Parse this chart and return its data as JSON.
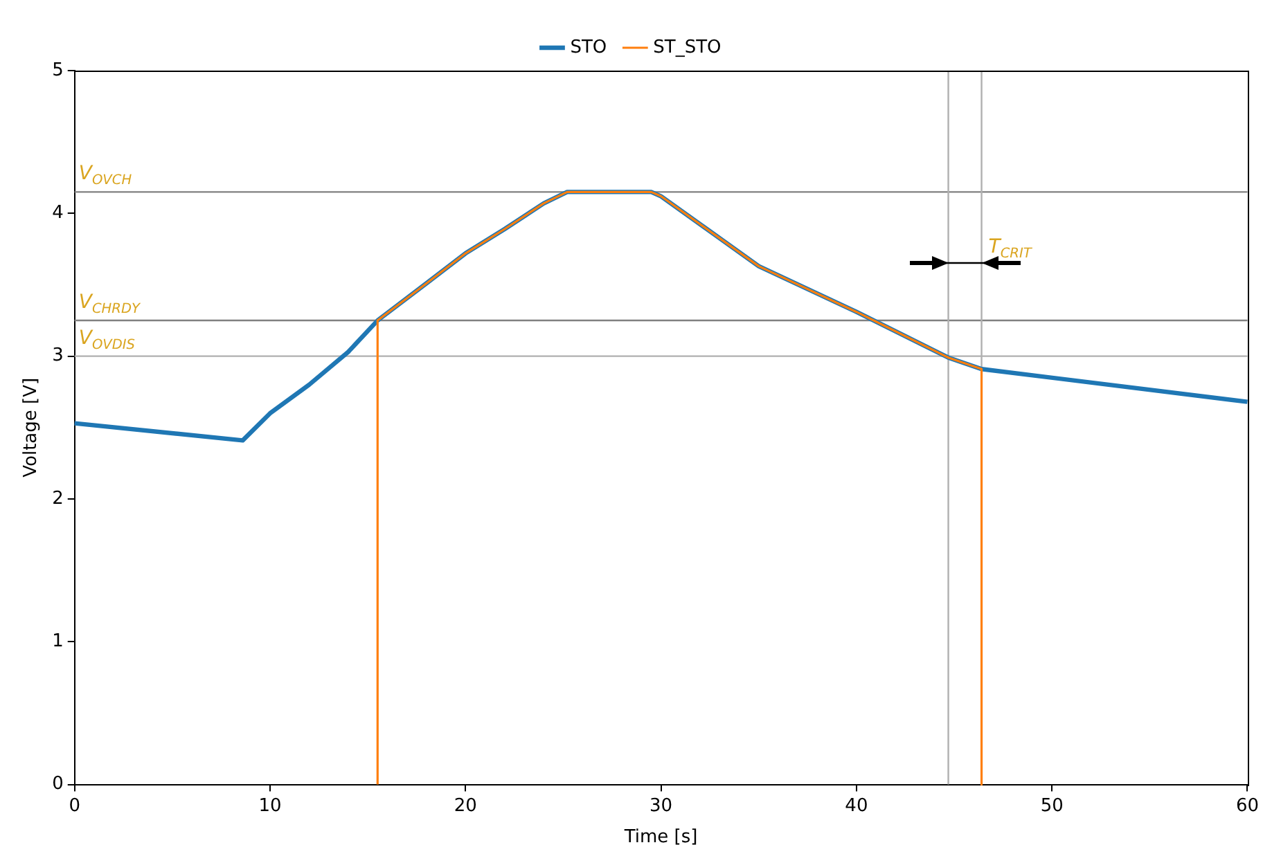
{
  "chart_data": {
    "type": "line",
    "xlabel": "Time [s]",
    "ylabel": "Voltage [V]",
    "xlim": [
      0,
      60
    ],
    "xticks": [
      0,
      10,
      20,
      30,
      40,
      50,
      60
    ],
    "ylim": [
      0,
      5
    ],
    "yticks": [
      0,
      1,
      2,
      3,
      4,
      5
    ],
    "grid": false,
    "legend": "top",
    "marker": "none",
    "line_style": "solid",
    "series": [
      {
        "name": "STO",
        "color": "#1f77b4",
        "x": [
          0,
          8.6,
          10,
          12,
          14,
          15.5,
          18,
          20,
          22,
          24,
          25.2,
          29.5,
          30,
          35,
          40,
          44.7,
          46.4,
          60
        ],
        "values": [
          2.53,
          2.41,
          2.6,
          2.8,
          3.03,
          3.25,
          3.51,
          3.72,
          3.89,
          4.07,
          4.15,
          4.15,
          4.12,
          3.63,
          3.31,
          2.99,
          2.91,
          2.68
        ]
      },
      {
        "name": "ST_STO",
        "color": "#ff7f0e",
        "x": [
          15.5,
          15.5,
          18,
          20,
          22,
          24,
          25.2,
          29.5,
          30,
          35,
          40,
          44.7,
          46.4,
          46.4
        ],
        "values": [
          0,
          3.25,
          3.51,
          3.72,
          3.89,
          4.07,
          4.15,
          4.15,
          4.12,
          3.63,
          3.31,
          2.99,
          2.91,
          0
        ]
      }
    ],
    "ref_lines": [
      {
        "axis": "y",
        "value": 4.15,
        "label": "V$_{OVCH}$",
        "color": "#808080"
      },
      {
        "axis": "y",
        "value": 3.25,
        "label": "V$_{CHRDY}$",
        "color": "#808080"
      },
      {
        "axis": "y",
        "value": 3,
        "label": "V$_{OVDIS}$",
        "color": "#b0b0b0"
      },
      {
        "axis": "x",
        "value": 44.7,
        "color": "#b0b0b0"
      },
      {
        "axis": "x",
        "value": 46.4,
        "color": "#b0b0b0"
      }
    ],
    "annotations": [
      {
        "text": "T$_{CRIT}$",
        "x": 46.4,
        "y": 3.65
      }
    ]
  }
}
